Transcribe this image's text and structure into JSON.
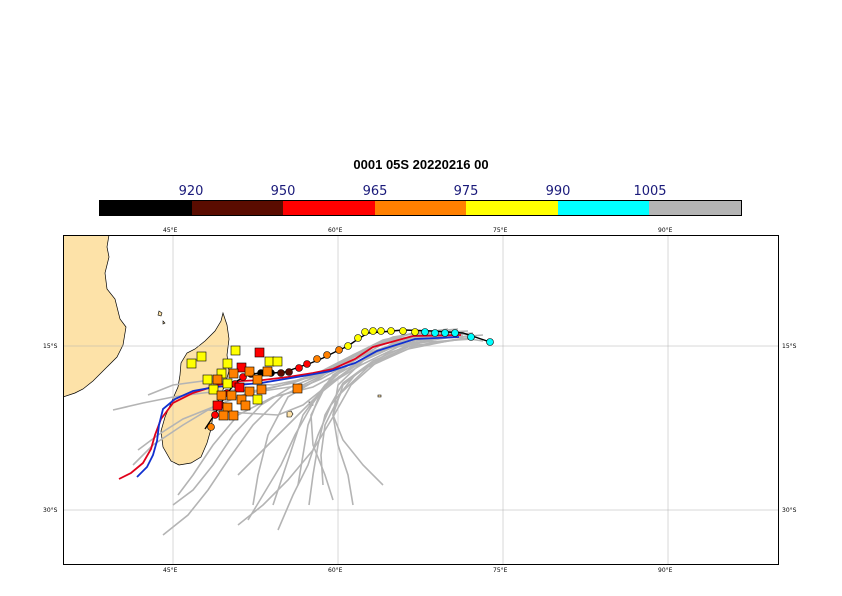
{
  "title": "0001 05S 20220216 00",
  "colorbar": {
    "labels": [
      "920",
      "950",
      "965",
      "975",
      "990",
      "1005"
    ],
    "colors": [
      "#000000",
      "#5a0c00",
      "#ff0000",
      "#ff8000",
      "#ffff00",
      "#00ffff",
      "#b4b4b4"
    ]
  },
  "axes": {
    "lon_ticks": [
      "45°E",
      "60°E",
      "75°E",
      "90°E"
    ],
    "lat_ticks": [
      "15°S",
      "30°S"
    ]
  },
  "map": {
    "land_color": "#fde2a8",
    "ensemble_track_color": "#b4b4b4",
    "track_red_color": "#e0001a",
    "track_blue_color": "#1030d0"
  }
}
